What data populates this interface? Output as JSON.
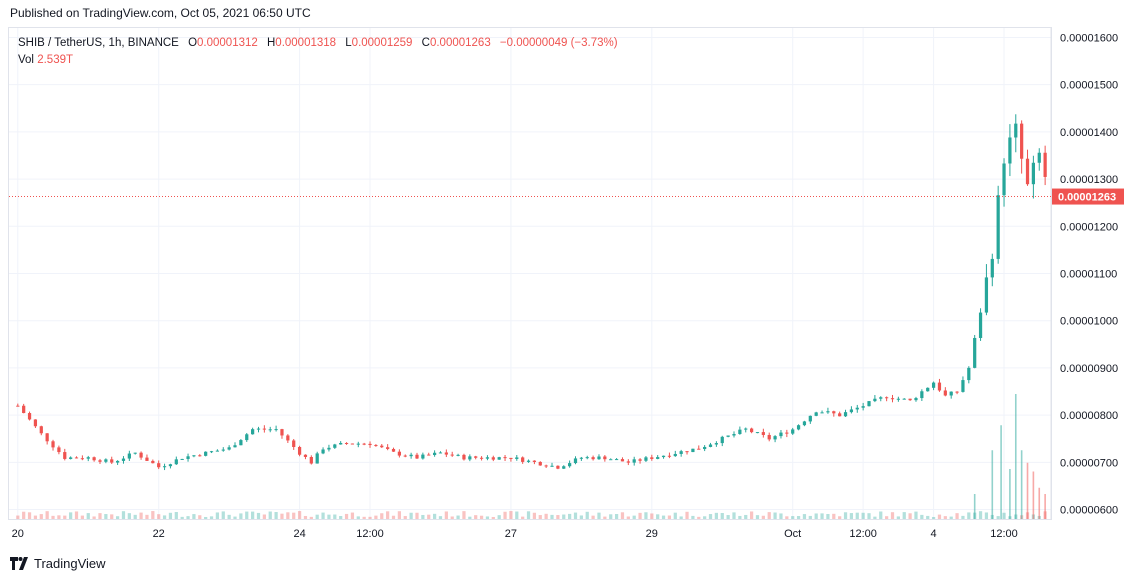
{
  "header": {
    "published": "Published on TradingView.com, Oct 05, 2021 06:50 UTC"
  },
  "legend": {
    "symbol": "SHIB / TetherUS, 1h, BINANCE",
    "o_label": "O",
    "o_value": "0.00001312",
    "h_label": "H",
    "h_value": "0.00001318",
    "l_label": "L",
    "l_value": "0.00001259",
    "c_label": "C",
    "c_value": "0.00001263",
    "change": "−0.00000049 (−3.73%)",
    "vol_label": "Vol",
    "vol_value": "2.539T"
  },
  "footer": {
    "brand": "TradingView"
  },
  "colors": {
    "up": "#26a69a",
    "down": "#ef5350",
    "grid": "#f0f3fa",
    "axis": "#e0e3eb"
  },
  "chart_data": {
    "type": "candlestick",
    "title": "SHIB / TetherUS, 1h, BINANCE",
    "ylim": [
      5.8e-06,
      1.62e-05
    ],
    "y_ticks": [
      "0.00001600",
      "0.00001500",
      "0.00001400",
      "0.00001300",
      "0.00001200",
      "0.00001100",
      "0.00001000",
      "0.00000900",
      "0.00000800",
      "0.00000700",
      "0.00000600"
    ],
    "y_tick_values": [
      1.6e-05,
      1.5e-05,
      1.4e-05,
      1.3e-05,
      1.2e-05,
      1.1e-05,
      1e-05,
      9e-06,
      8e-06,
      7e-06,
      6e-06
    ],
    "x_ticks": [
      "20",
      "22",
      "24",
      "12:00",
      "27",
      "29",
      "Oct",
      "12:00",
      "4",
      "12:00"
    ],
    "x_tick_hours": [
      0,
      48,
      96,
      120,
      168,
      216,
      264,
      288,
      312,
      336
    ],
    "last_price": 1.263e-05,
    "last_price_label": "0.00001263",
    "price_path_hours": [
      0,
      8,
      16,
      24,
      32,
      40,
      48,
      56,
      64,
      72,
      80,
      88,
      96,
      100,
      104,
      112,
      120,
      128,
      136,
      144,
      152,
      160,
      168,
      176,
      184,
      192,
      200,
      208,
      216,
      224,
      232,
      240,
      248,
      256,
      264,
      272,
      280,
      288,
      296,
      304,
      312,
      316,
      320,
      324,
      328,
      332,
      336,
      340,
      344,
      348,
      352
    ],
    "price_path_values": [
      8.2e-06,
      7.6e-06,
      7.1e-06,
      7.1e-06,
      7e-06,
      7.2e-06,
      6.9e-06,
      7.1e-06,
      7.2e-06,
      7.3e-06,
      7.7e-06,
      7.7e-06,
      7.2e-06,
      7e-06,
      7.3e-06,
      7.4e-06,
      7.4e-06,
      7.2e-06,
      7.1e-06,
      7.2e-06,
      7.1e-06,
      7.1e-06,
      7.1e-06,
      7e-06,
      6.9e-06,
      7.1e-06,
      7.1e-06,
      7e-06,
      7.1e-06,
      7.2e-06,
      7.3e-06,
      7.5e-06,
      7.7e-06,
      7.5e-06,
      7.7e-06,
      8.1e-06,
      8e-06,
      8.2e-06,
      8.4e-06,
      8.3e-06,
      8.7e-06,
      8.4e-06,
      8.5e-06,
      9e-06,
      1.02e-05,
      1.15e-05,
      1.35e-05,
      1.4e-05,
      1.28e-05,
      1.35e-05,
      1.26e-05
    ],
    "volume_spikes": [
      {
        "hour": 326,
        "value": 0.2,
        "dir": "up"
      },
      {
        "hour": 332,
        "value": 0.55,
        "dir": "up"
      },
      {
        "hour": 335,
        "value": 0.75,
        "dir": "up"
      },
      {
        "hour": 338,
        "value": 0.4,
        "dir": "up"
      },
      {
        "hour": 340,
        "value": 1.0,
        "dir": "up"
      },
      {
        "hour": 342,
        "value": 0.55,
        "dir": "up"
      },
      {
        "hour": 344,
        "value": 0.45,
        "dir": "down"
      },
      {
        "hour": 346,
        "value": 0.38,
        "dir": "down"
      },
      {
        "hour": 348,
        "value": 0.25,
        "dir": "down"
      },
      {
        "hour": 350,
        "value": 0.2,
        "dir": "down"
      }
    ]
  }
}
